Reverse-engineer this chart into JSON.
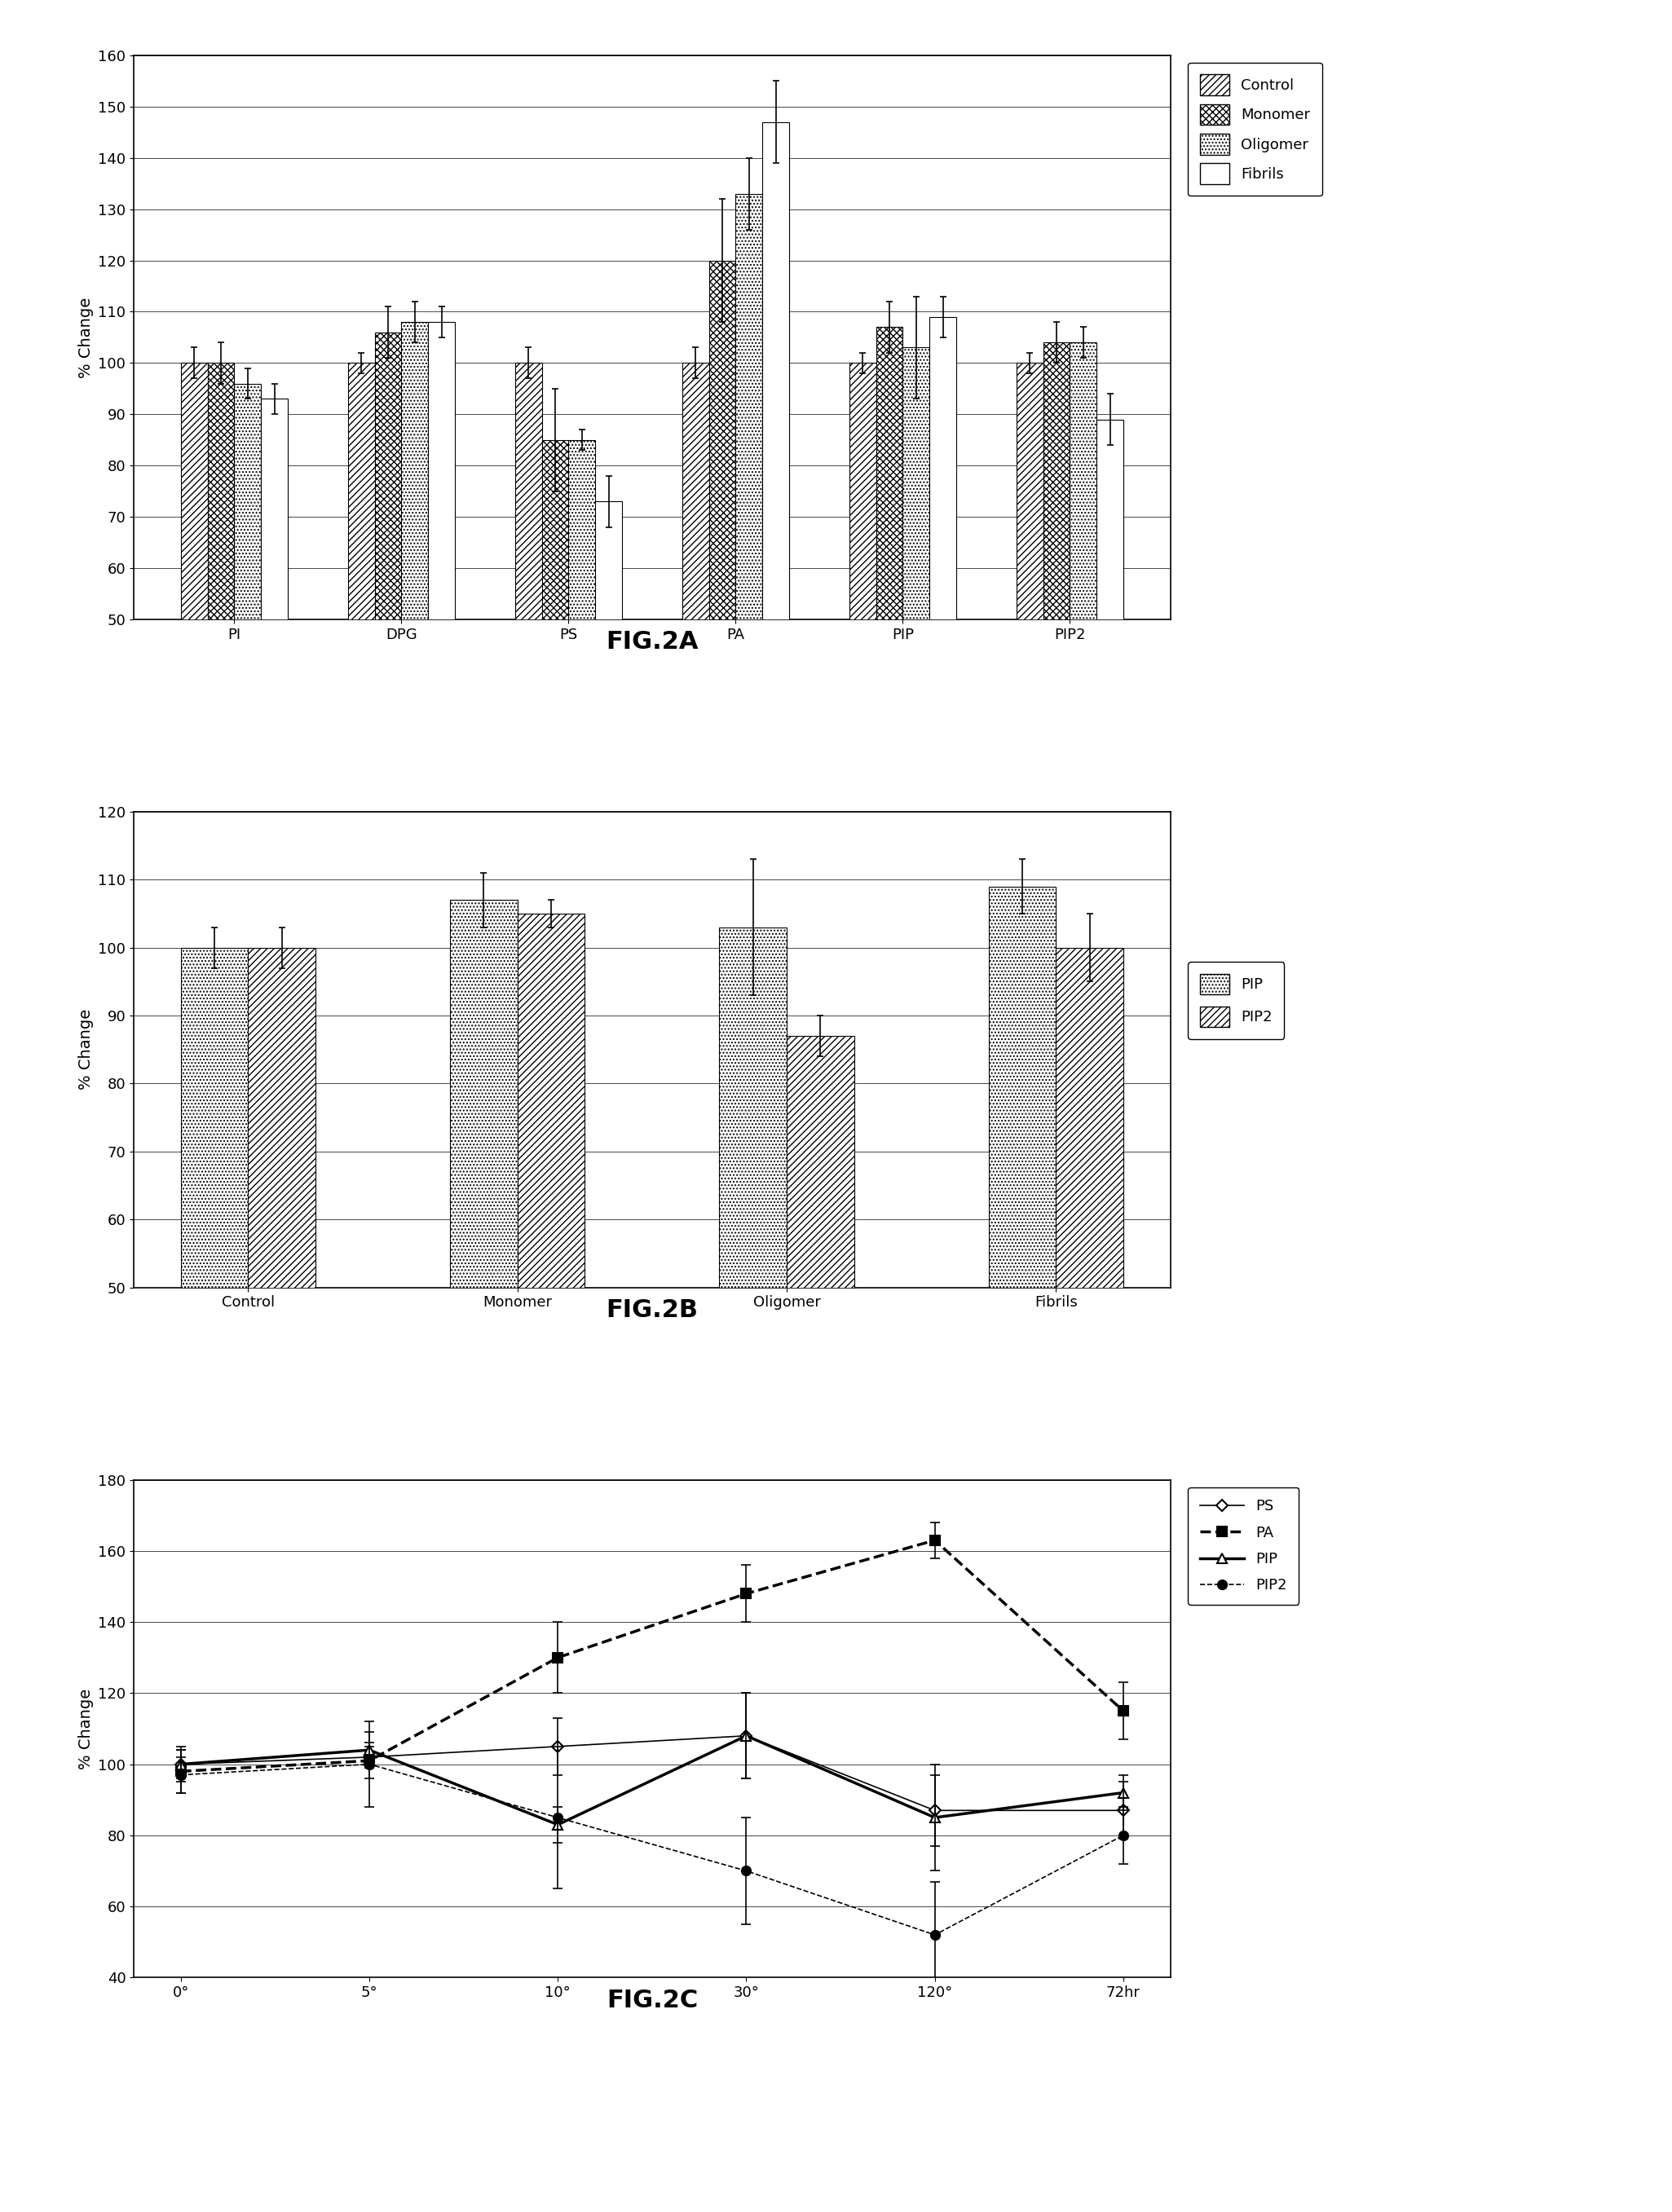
{
  "fig2a": {
    "categories": [
      "PI",
      "DPG",
      "PS",
      "PA",
      "PIP",
      "PIP2"
    ],
    "control": [
      100,
      100,
      100,
      100,
      100,
      100
    ],
    "monomer": [
      100,
      106,
      85,
      120,
      107,
      104
    ],
    "oligomer": [
      96,
      108,
      85,
      133,
      103,
      104
    ],
    "fibrils": [
      93,
      108,
      73,
      147,
      109,
      89
    ],
    "control_err": [
      3,
      2,
      3,
      3,
      2,
      2
    ],
    "monomer_err": [
      4,
      5,
      10,
      12,
      5,
      4
    ],
    "oligomer_err": [
      3,
      4,
      2,
      7,
      10,
      3
    ],
    "fibrils_err": [
      3,
      3,
      5,
      8,
      4,
      5
    ],
    "ylabel": "% Change",
    "ylim": [
      50,
      160
    ],
    "yticks": [
      50,
      60,
      70,
      80,
      90,
      100,
      110,
      120,
      130,
      140,
      150,
      160
    ],
    "title": "FIG.2A"
  },
  "fig2b": {
    "categories": [
      "Control",
      "Monomer",
      "Oligomer",
      "Fibrils"
    ],
    "pip": [
      100,
      107,
      103,
      109
    ],
    "pip2": [
      100,
      105,
      87,
      100
    ],
    "pip_err": [
      3,
      4,
      10,
      4
    ],
    "pip2_err": [
      3,
      2,
      3,
      5
    ],
    "ylabel": "% Change",
    "ylim": [
      50,
      120
    ],
    "yticks": [
      50,
      60,
      70,
      80,
      90,
      100,
      110,
      120
    ],
    "title": "FIG.2B"
  },
  "fig2c": {
    "xticklabels": [
      "0°",
      "5°",
      "10°",
      "30°",
      "120°",
      "72hr"
    ],
    "ps": [
      100,
      102,
      105,
      108,
      87,
      87
    ],
    "pa": [
      98,
      101,
      130,
      148,
      163,
      115
    ],
    "pip": [
      100,
      104,
      83,
      108,
      85,
      92
    ],
    "pip2": [
      97,
      100,
      85,
      70,
      52,
      80
    ],
    "ps_err": [
      5,
      3,
      8,
      12,
      10,
      8
    ],
    "pa_err": [
      6,
      5,
      10,
      8,
      5,
      8
    ],
    "pip_err": [
      4,
      5,
      5,
      12,
      15,
      5
    ],
    "pip2_err": [
      5,
      12,
      20,
      15,
      15,
      8
    ],
    "ylabel": "% Change",
    "ylim": [
      40,
      180
    ],
    "yticks": [
      40,
      60,
      80,
      100,
      120,
      140,
      160,
      180
    ],
    "title": "FIG.2C"
  }
}
